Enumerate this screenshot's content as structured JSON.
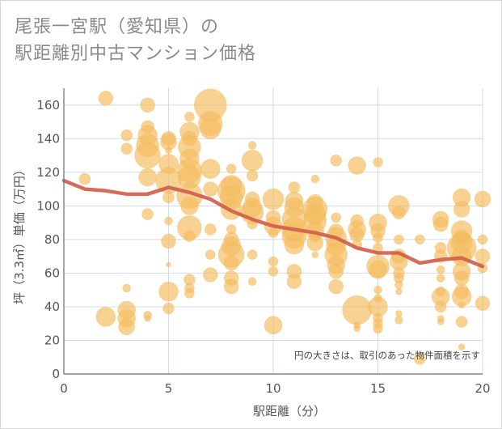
{
  "title": "尾張一宮駅（愛知県）の\n駅距離別中古マンション価格",
  "chart_data": {
    "type": "scatter",
    "title": "尾張一宮駅（愛知県）の 駅距離別中古マンション価格",
    "xlabel": "駅距離（分）",
    "ylabel": "坪（3.3㎡）単価（万円）",
    "xlim": [
      0,
      20
    ],
    "ylim": [
      0,
      170
    ],
    "xticks": [
      0,
      5,
      10,
      15,
      20
    ],
    "yticks": [
      0,
      20,
      40,
      60,
      80,
      100,
      120,
      140,
      160
    ],
    "grid": true,
    "note": "円の大きさは、取引のあった物件面積を示す",
    "colors": {
      "bubble": "#f5bd60",
      "trend": "#d0604c",
      "grid": "#cfdbe6"
    },
    "points": [
      [
        1,
        116,
        7
      ],
      [
        2,
        164,
        9
      ],
      [
        2,
        34,
        12
      ],
      [
        3,
        142,
        7
      ],
      [
        3,
        134,
        7
      ],
      [
        3,
        51,
        5
      ],
      [
        3,
        38,
        11
      ],
      [
        3,
        33,
        11
      ],
      [
        3,
        28,
        10
      ],
      [
        4,
        160,
        9
      ],
      [
        4,
        147,
        8
      ],
      [
        4,
        142,
        12
      ],
      [
        4,
        136,
        14
      ],
      [
        4,
        130,
        16
      ],
      [
        4,
        117,
        11
      ],
      [
        4,
        95,
        7
      ],
      [
        4,
        35,
        5
      ],
      [
        4,
        33,
        4
      ],
      [
        5,
        140,
        9
      ],
      [
        5,
        138,
        10
      ],
      [
        5,
        133,
        4
      ],
      [
        5,
        125,
        12
      ],
      [
        5,
        115,
        16
      ],
      [
        5,
        105,
        7
      ],
      [
        5,
        91,
        5
      ],
      [
        5,
        79,
        9
      ],
      [
        5,
        65,
        3
      ],
      [
        5,
        49,
        12
      ],
      [
        5,
        39,
        7
      ],
      [
        6,
        153,
        6
      ],
      [
        6,
        144,
        12
      ],
      [
        6,
        140,
        9
      ],
      [
        6,
        135,
        14
      ],
      [
        6,
        128,
        12
      ],
      [
        6,
        121,
        15
      ],
      [
        6,
        117,
        14
      ],
      [
        6,
        106,
        16
      ],
      [
        6,
        100,
        11
      ],
      [
        6,
        87,
        15
      ],
      [
        6,
        82,
        7
      ],
      [
        6,
        56,
        7
      ],
      [
        6,
        51,
        6
      ],
      [
        6,
        48,
        6
      ],
      [
        7,
        160,
        20
      ],
      [
        7,
        149,
        15
      ],
      [
        7,
        146,
        13
      ],
      [
        7,
        122,
        12
      ],
      [
        7,
        110,
        9
      ],
      [
        7,
        86,
        7
      ],
      [
        7,
        71,
        6
      ],
      [
        7,
        59,
        9
      ],
      [
        8,
        122,
        6
      ],
      [
        8,
        112,
        13
      ],
      [
        8,
        109,
        17
      ],
      [
        8,
        105,
        14
      ],
      [
        8,
        98,
        13
      ],
      [
        8,
        86,
        6
      ],
      [
        8,
        80,
        9
      ],
      [
        8,
        76,
        12
      ],
      [
        8,
        71,
        16
      ],
      [
        8,
        66,
        9
      ],
      [
        8,
        57,
        9
      ],
      [
        8,
        52,
        9
      ],
      [
        9,
        136,
        5
      ],
      [
        9,
        127,
        13
      ],
      [
        9,
        118,
        7
      ],
      [
        9,
        104,
        9
      ],
      [
        9,
        99,
        12
      ],
      [
        9,
        96,
        14
      ],
      [
        9,
        89,
        6
      ],
      [
        9,
        71,
        6
      ],
      [
        9,
        55,
        5
      ],
      [
        10,
        104,
        13
      ],
      [
        10,
        93,
        9
      ],
      [
        10,
        88,
        11
      ],
      [
        10,
        84,
        6
      ],
      [
        10,
        67,
        6
      ],
      [
        10,
        61,
        6
      ],
      [
        10,
        29,
        11
      ],
      [
        11,
        111,
        7
      ],
      [
        11,
        103,
        11
      ],
      [
        11,
        99,
        12
      ],
      [
        11,
        92,
        15
      ],
      [
        11,
        86,
        15
      ],
      [
        11,
        82,
        15
      ],
      [
        11,
        77,
        12
      ],
      [
        11,
        61,
        9
      ],
      [
        11,
        55,
        9
      ],
      [
        12,
        116,
        5
      ],
      [
        12,
        102,
        10
      ],
      [
        12,
        98,
        15
      ],
      [
        12,
        95,
        13
      ],
      [
        12,
        91,
        14
      ],
      [
        12,
        85,
        11
      ],
      [
        12,
        82,
        7
      ],
      [
        12,
        78,
        10
      ],
      [
        12,
        71,
        4
      ],
      [
        13,
        127,
        7
      ],
      [
        13,
        93,
        6
      ],
      [
        13,
        85,
        9
      ],
      [
        13,
        81,
        13
      ],
      [
        13,
        76,
        12
      ],
      [
        13,
        71,
        14
      ],
      [
        13,
        65,
        11
      ],
      [
        13,
        61,
        9
      ],
      [
        13,
        52,
        9
      ],
      [
        14,
        124,
        11
      ],
      [
        14,
        91,
        8
      ],
      [
        14,
        86,
        11
      ],
      [
        14,
        83,
        9
      ],
      [
        14,
        77,
        6
      ],
      [
        14,
        38,
        18
      ],
      [
        14,
        29,
        4
      ],
      [
        14,
        27,
        4
      ],
      [
        15,
        126,
        6
      ],
      [
        15,
        90,
        11
      ],
      [
        15,
        85,
        9
      ],
      [
        15,
        81,
        6
      ],
      [
        15,
        75,
        6
      ],
      [
        15,
        64,
        14
      ],
      [
        15,
        62,
        11
      ],
      [
        15,
        50,
        5
      ],
      [
        15,
        45,
        5
      ],
      [
        15,
        40,
        12
      ],
      [
        15,
        33,
        6
      ],
      [
        15,
        30,
        6
      ],
      [
        15,
        27,
        6
      ],
      [
        16,
        100,
        13
      ],
      [
        16,
        96,
        8
      ],
      [
        16,
        80,
        6
      ],
      [
        16,
        70,
        9
      ],
      [
        16,
        67,
        11
      ],
      [
        16,
        60,
        7
      ],
      [
        16,
        57,
        6
      ],
      [
        16,
        53,
        5
      ],
      [
        16,
        49,
        4
      ],
      [
        16,
        36,
        4
      ],
      [
        16,
        32,
        5
      ],
      [
        17,
        80,
        6
      ],
      [
        17,
        9,
        7
      ],
      [
        18,
        92,
        10
      ],
      [
        18,
        89,
        9
      ],
      [
        18,
        75,
        7
      ],
      [
        18,
        70,
        8
      ],
      [
        18,
        62,
        5
      ],
      [
        18,
        57,
        5
      ],
      [
        18,
        49,
        6
      ],
      [
        18,
        46,
        11
      ],
      [
        18,
        40,
        7
      ],
      [
        18,
        33,
        4
      ],
      [
        18,
        31,
        4
      ],
      [
        19,
        105,
        11
      ],
      [
        19,
        98,
        10
      ],
      [
        19,
        85,
        13
      ],
      [
        19,
        81,
        10
      ],
      [
        19,
        78,
        13
      ],
      [
        19,
        75,
        18
      ],
      [
        19,
        70,
        12
      ],
      [
        19,
        61,
        11
      ],
      [
        19,
        57,
        9
      ],
      [
        19,
        49,
        9
      ],
      [
        19,
        46,
        12
      ],
      [
        19,
        41,
        4
      ],
      [
        19,
        31,
        7
      ],
      [
        19,
        16,
        4
      ],
      [
        20,
        104,
        10
      ],
      [
        20,
        80,
        6
      ],
      [
        20,
        70,
        9
      ],
      [
        20,
        63,
        6
      ],
      [
        20,
        42,
        9
      ]
    ],
    "trend": {
      "x": [
        0,
        1,
        2,
        3,
        4,
        5,
        6,
        7,
        8,
        9,
        10,
        11,
        12,
        13,
        14,
        15,
        16,
        17,
        18,
        19,
        20
      ],
      "y": [
        115,
        110,
        109,
        107,
        107,
        111,
        108,
        104,
        97,
        92,
        88,
        86,
        84,
        81,
        75,
        72,
        72,
        66,
        68,
        69,
        64
      ]
    }
  }
}
